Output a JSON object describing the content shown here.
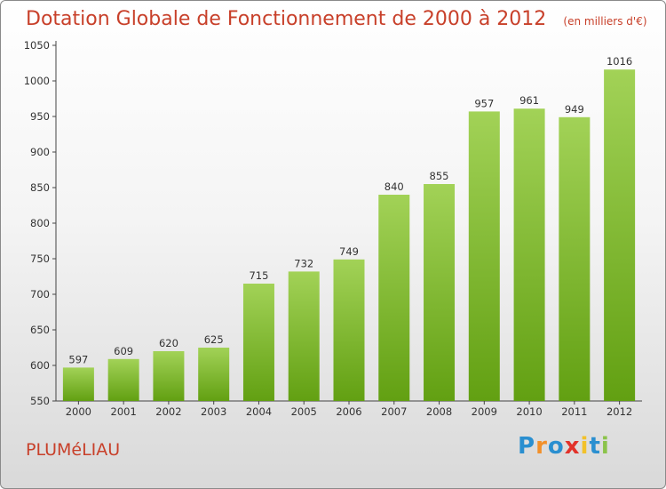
{
  "chart_data": {
    "type": "bar",
    "title": "Dotation Globale de Fonctionnement de 2000 à 2012",
    "unit_label": "(en milliers d'€)",
    "categories": [
      "2000",
      "2001",
      "2002",
      "2003",
      "2004",
      "2005",
      "2006",
      "2007",
      "2008",
      "2009",
      "2010",
      "2011",
      "2012"
    ],
    "values": [
      597,
      609,
      620,
      625,
      715,
      732,
      749,
      840,
      855,
      957,
      961,
      949,
      1016
    ],
    "data_labels": [
      "597",
      "609",
      "620",
      "625",
      "715",
      "732",
      "749",
      "840",
      "855",
      "957",
      "961",
      "949",
      "1016"
    ],
    "ylim": [
      550,
      1050
    ],
    "yticks": [
      550,
      600,
      650,
      700,
      750,
      800,
      850,
      900,
      950,
      1000,
      1050
    ],
    "grid": false,
    "bar_color": "#7fb82e"
  },
  "commune_name": "PLUMéLIAU",
  "logo": {
    "text": "Proxiti",
    "colors": [
      "#2a8fd0",
      "#f2902a",
      "#2a8fd0",
      "#e2322a",
      "#f2c12a",
      "#2a8fd0",
      "#8bc34a"
    ]
  }
}
